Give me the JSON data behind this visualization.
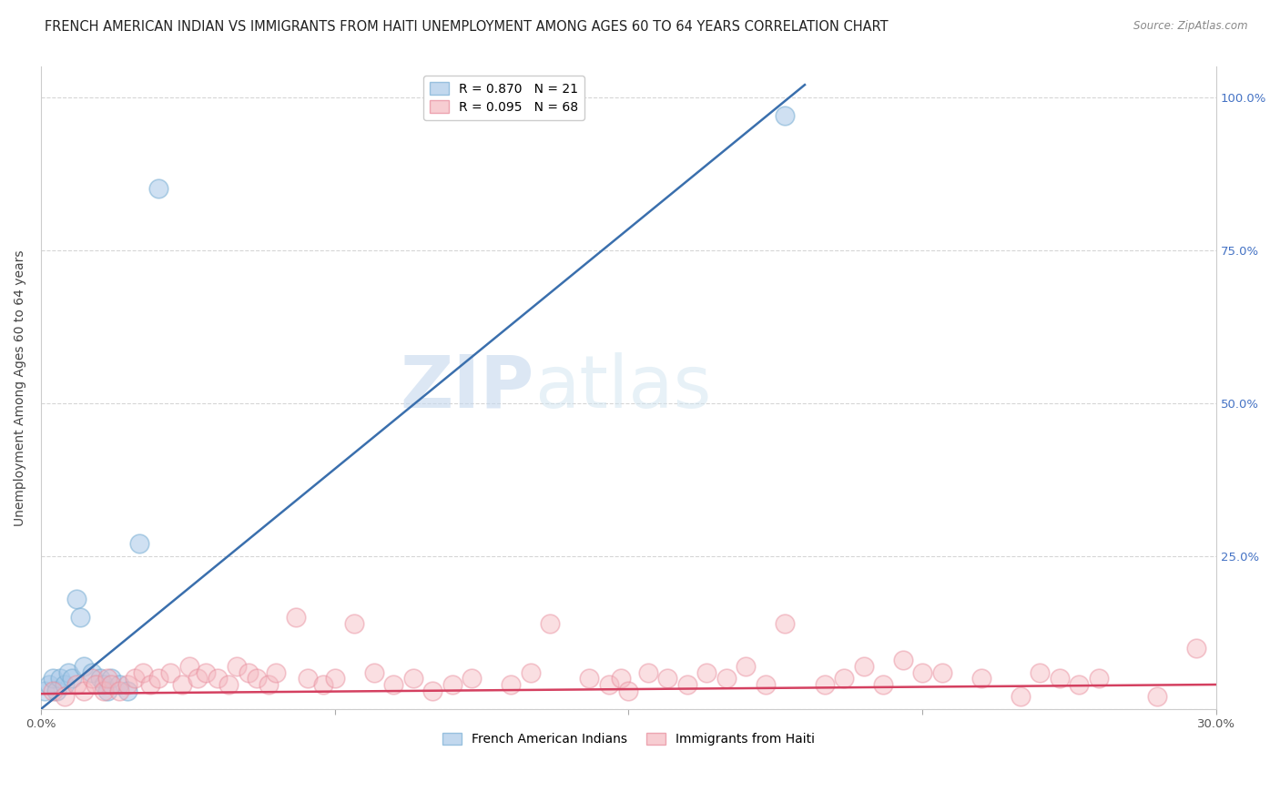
{
  "title": "FRENCH AMERICAN INDIAN VS IMMIGRANTS FROM HAITI UNEMPLOYMENT AMONG AGES 60 TO 64 YEARS CORRELATION CHART",
  "source": "Source: ZipAtlas.com",
  "ylabel": "Unemployment Among Ages 60 to 64 years",
  "xlim": [
    0.0,
    0.3
  ],
  "ylim": [
    0.0,
    1.05
  ],
  "xticks": [
    0.0,
    0.075,
    0.15,
    0.225,
    0.3
  ],
  "xticklabels": [
    "0.0%",
    "",
    "",
    "",
    "30.0%"
  ],
  "yticks_right": [
    0.0,
    0.25,
    0.5,
    0.75,
    1.0
  ],
  "yticklabels_right": [
    "",
    "25.0%",
    "50.0%",
    "75.0%",
    "100.0%"
  ],
  "blue_R": 0.87,
  "blue_N": 21,
  "pink_R": 0.095,
  "pink_N": 68,
  "blue_color": "#a8c8e8",
  "pink_color": "#f4b8c0",
  "blue_edge_color": "#7aafd4",
  "pink_edge_color": "#e88a9a",
  "blue_line_color": "#3a6fad",
  "pink_line_color": "#d44060",
  "legend_label_blue": "French American Indians",
  "legend_label_pink": "Immigrants from Haiti",
  "watermark_zip": "ZIP",
  "watermark_atlas": "atlas",
  "blue_points_x": [
    0.001,
    0.002,
    0.003,
    0.004,
    0.005,
    0.006,
    0.007,
    0.008,
    0.009,
    0.01,
    0.011,
    0.013,
    0.015,
    0.016,
    0.017,
    0.018,
    0.02,
    0.022,
    0.025,
    0.03,
    0.19
  ],
  "blue_points_y": [
    0.03,
    0.04,
    0.05,
    0.03,
    0.05,
    0.04,
    0.06,
    0.05,
    0.18,
    0.15,
    0.07,
    0.06,
    0.05,
    0.04,
    0.03,
    0.05,
    0.04,
    0.03,
    0.27,
    0.85,
    0.97
  ],
  "blue_line_x": [
    0.0,
    0.195
  ],
  "blue_line_y": [
    0.0,
    1.02
  ],
  "pink_line_x": [
    0.0,
    0.3
  ],
  "pink_line_y": [
    0.025,
    0.04
  ],
  "pink_points_x": [
    0.003,
    0.006,
    0.009,
    0.011,
    0.013,
    0.014,
    0.016,
    0.017,
    0.018,
    0.02,
    0.022,
    0.024,
    0.026,
    0.028,
    0.03,
    0.033,
    0.036,
    0.038,
    0.04,
    0.042,
    0.045,
    0.048,
    0.05,
    0.053,
    0.055,
    0.058,
    0.06,
    0.065,
    0.068,
    0.072,
    0.075,
    0.08,
    0.085,
    0.09,
    0.095,
    0.1,
    0.105,
    0.11,
    0.12,
    0.125,
    0.13,
    0.14,
    0.145,
    0.148,
    0.15,
    0.155,
    0.16,
    0.165,
    0.17,
    0.175,
    0.18,
    0.185,
    0.19,
    0.2,
    0.205,
    0.21,
    0.215,
    0.22,
    0.225,
    0.23,
    0.24,
    0.25,
    0.255,
    0.26,
    0.265,
    0.27,
    0.285,
    0.295
  ],
  "pink_points_y": [
    0.03,
    0.02,
    0.04,
    0.03,
    0.05,
    0.04,
    0.03,
    0.05,
    0.04,
    0.03,
    0.04,
    0.05,
    0.06,
    0.04,
    0.05,
    0.06,
    0.04,
    0.07,
    0.05,
    0.06,
    0.05,
    0.04,
    0.07,
    0.06,
    0.05,
    0.04,
    0.06,
    0.15,
    0.05,
    0.04,
    0.05,
    0.14,
    0.06,
    0.04,
    0.05,
    0.03,
    0.04,
    0.05,
    0.04,
    0.06,
    0.14,
    0.05,
    0.04,
    0.05,
    0.03,
    0.06,
    0.05,
    0.04,
    0.06,
    0.05,
    0.07,
    0.04,
    0.14,
    0.04,
    0.05,
    0.07,
    0.04,
    0.08,
    0.06,
    0.06,
    0.05,
    0.02,
    0.06,
    0.05,
    0.04,
    0.05,
    0.02,
    0.1
  ],
  "background_color": "#ffffff",
  "grid_color": "#cccccc",
  "title_fontsize": 10.5,
  "axis_fontsize": 10,
  "tick_fontsize": 9.5,
  "right_tick_color": "#4472c4"
}
